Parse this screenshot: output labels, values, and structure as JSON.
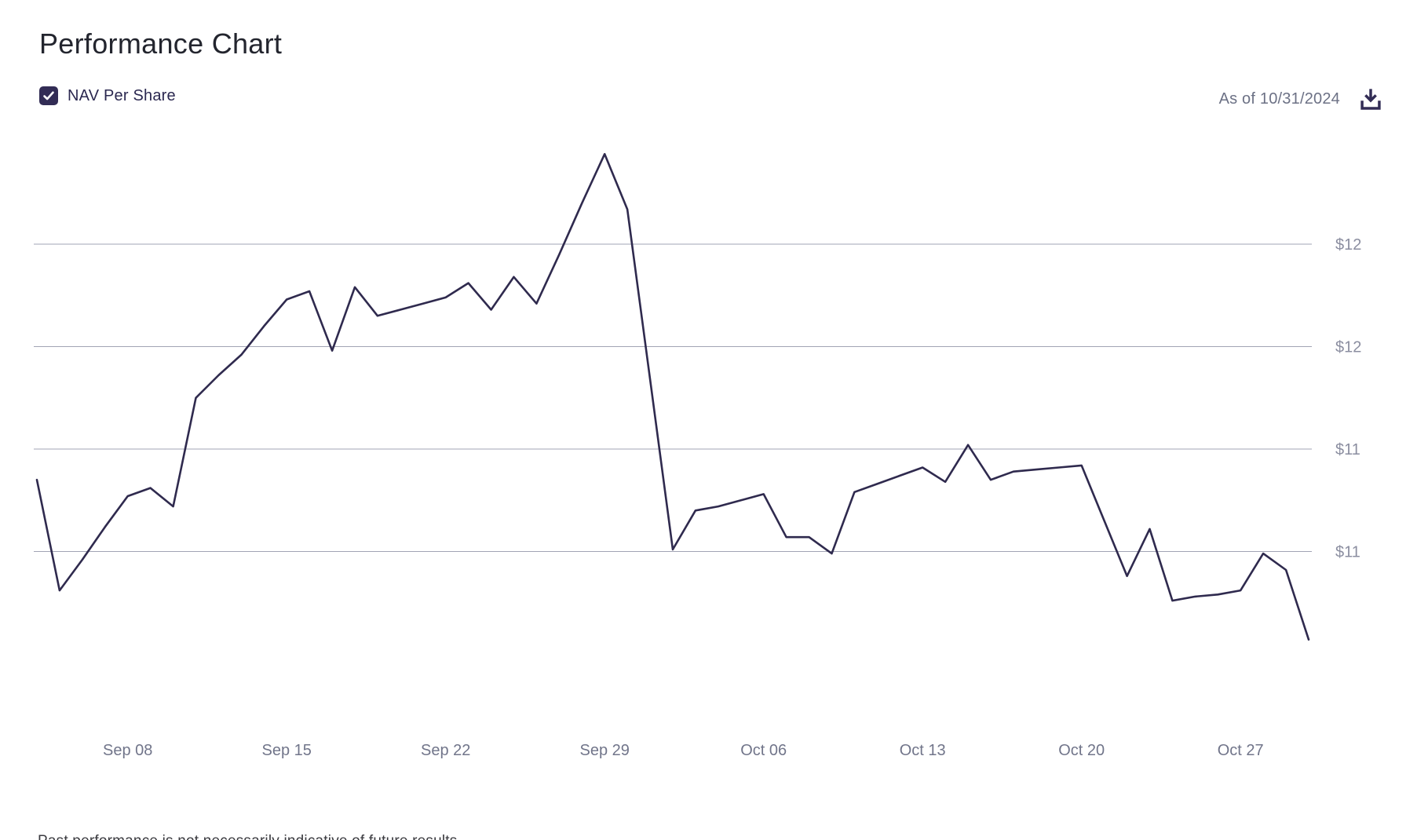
{
  "header": {
    "title": "Performance Chart"
  },
  "legend": {
    "label": "NAV Per Share",
    "checked": true,
    "checkmark_icon": "check-icon"
  },
  "as_of": {
    "text": "As of 10/31/2024"
  },
  "toolbar": {
    "download_icon": "download-icon"
  },
  "colors": {
    "line": "#2f2a4e",
    "gridline": "#a2a4b4",
    "y_axis_label": "#8b8ea0",
    "x_axis_label": "#71758a",
    "checkbox": "#322c55",
    "title": "#23252e",
    "legend_text": "#2b2850",
    "as_of_text": "#6c7185",
    "footer_text": "#3b3b40"
  },
  "chart_data": {
    "type": "line",
    "title": "Performance Chart",
    "legend_position": "top-left",
    "grid": true,
    "ylim": [
      10.0,
      12.6
    ],
    "y_axis": {
      "tick_format": "rounded US dollars",
      "ticks": [
        {
          "value": 12.0,
          "label": "$12"
        },
        {
          "value": 11.5,
          "label": "$12"
        },
        {
          "value": 11.0,
          "label": "$11"
        },
        {
          "value": 10.5,
          "label": "$11"
        }
      ]
    },
    "x_axis": {
      "ticks": [
        {
          "date": "2024-09-08",
          "label": "Sep 08"
        },
        {
          "date": "2024-09-15",
          "label": "Sep 15"
        },
        {
          "date": "2024-09-22",
          "label": "Sep 22"
        },
        {
          "date": "2024-09-29",
          "label": "Sep 29"
        },
        {
          "date": "2024-10-06",
          "label": "Oct 06"
        },
        {
          "date": "2024-10-13",
          "label": "Oct 13"
        },
        {
          "date": "2024-10-20",
          "label": "Oct 20"
        },
        {
          "date": "2024-10-27",
          "label": "Oct 27"
        }
      ]
    },
    "series": [
      {
        "name": "NAV Per Share",
        "dates": [
          "2024-09-04",
          "2024-09-05",
          "2024-09-06",
          "2024-09-07",
          "2024-09-08",
          "2024-09-09",
          "2024-09-10",
          "2024-09-11",
          "2024-09-12",
          "2024-09-13",
          "2024-09-14",
          "2024-09-15",
          "2024-09-16",
          "2024-09-17",
          "2024-09-18",
          "2024-09-19",
          "2024-09-20",
          "2024-09-21",
          "2024-09-22",
          "2024-09-23",
          "2024-09-24",
          "2024-09-25",
          "2024-09-26",
          "2024-09-27",
          "2024-09-28",
          "2024-09-29",
          "2024-09-30",
          "2024-10-01",
          "2024-10-02",
          "2024-10-03",
          "2024-10-04",
          "2024-10-05",
          "2024-10-06",
          "2024-10-07",
          "2024-10-08",
          "2024-10-09",
          "2024-10-10",
          "2024-10-11",
          "2024-10-12",
          "2024-10-13",
          "2024-10-14",
          "2024-10-15",
          "2024-10-16",
          "2024-10-17",
          "2024-10-18",
          "2024-10-19",
          "2024-10-20",
          "2024-10-21",
          "2024-10-22",
          "2024-10-23",
          "2024-10-24",
          "2024-10-25",
          "2024-10-26",
          "2024-10-27",
          "2024-10-28",
          "2024-10-29",
          "2024-10-30"
        ],
        "values": [
          10.85,
          10.31,
          10.46,
          10.62,
          10.77,
          10.81,
          10.72,
          11.25,
          11.36,
          11.46,
          11.6,
          11.73,
          11.77,
          11.48,
          11.79,
          11.65,
          11.68,
          11.71,
          11.74,
          11.81,
          11.68,
          11.84,
          11.71,
          11.95,
          12.2,
          12.44,
          12.17,
          11.34,
          10.51,
          10.7,
          10.72,
          10.75,
          10.78,
          10.57,
          10.57,
          10.49,
          10.79,
          10.83,
          10.87,
          10.91,
          10.84,
          11.02,
          10.85,
          10.89,
          10.9,
          10.91,
          10.92,
          10.65,
          10.38,
          10.61,
          10.26,
          10.28,
          10.29,
          10.31,
          10.49,
          10.41,
          10.07
        ]
      }
    ]
  },
  "footer": {
    "disclaimer": "Past performance is not necessarily indicative of future results."
  }
}
